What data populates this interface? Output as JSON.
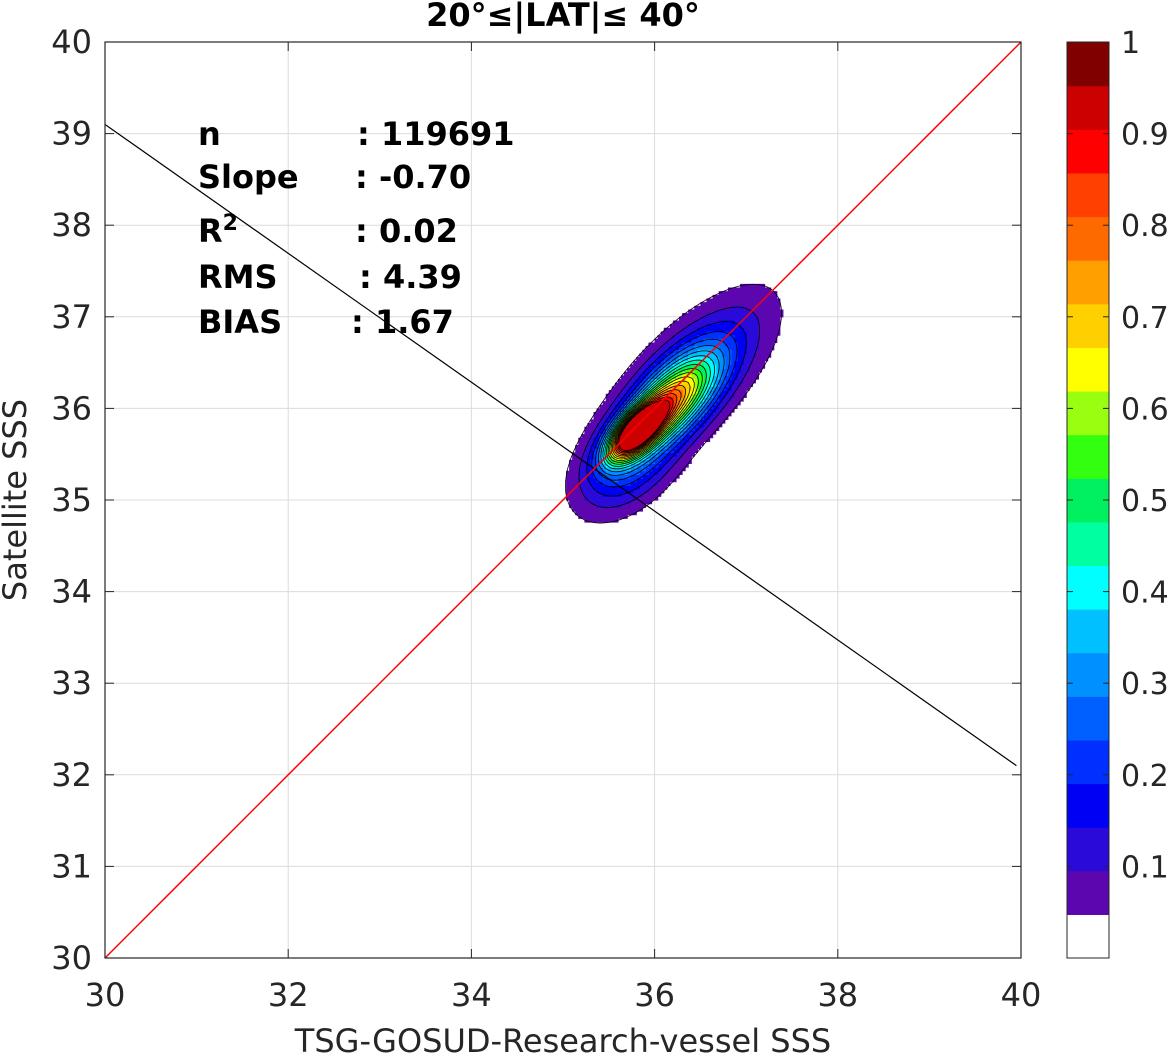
{
  "chart_data": {
    "type": "heatmap",
    "subtype": "filled-contour density scatter",
    "title": "20°≤|LAT|≤ 40°",
    "xlabel": "TSG-GOSUD-Research-vessel SSS",
    "ylabel": "Satellite SSS",
    "xlim": [
      30,
      40
    ],
    "ylim": [
      30,
      40
    ],
    "xticks": [
      30,
      32,
      34,
      36,
      38,
      40
    ],
    "yticks": [
      30,
      31,
      32,
      33,
      34,
      35,
      36,
      37,
      38,
      39,
      40
    ],
    "grid": true,
    "stats": [
      {
        "label": "n",
        "value": ": 119691"
      },
      {
        "label": "Slope",
        "value": ": -0.70"
      },
      {
        "label": "R",
        "sup": "2",
        "value": ": 0.02"
      },
      {
        "label": "RMS",
        "value": ": 4.39"
      },
      {
        "label": "BIAS",
        "value": ": 1.67"
      }
    ],
    "one_to_one_line": {
      "color": "#ff0000",
      "x": [
        30,
        40
      ],
      "y": [
        30,
        40
      ]
    },
    "regression_line": {
      "color": "#000000",
      "x": [
        30,
        39.95
      ],
      "y": [
        39.1,
        32.1
      ]
    },
    "density_peaks": [
      {
        "x": 35.8,
        "y": 35.75,
        "value": 0.95
      },
      {
        "x": 36.3,
        "y": 36.15,
        "value": 0.5
      }
    ],
    "colorbar": {
      "location": "right",
      "ticks": [
        1,
        0.9,
        0.8,
        0.7,
        0.6,
        0.5,
        0.4,
        0.3,
        0.2,
        0.1
      ],
      "tick_labels": [
        "1",
        "0.9",
        "0.8",
        "0.7",
        "0.6",
        "0.5",
        "0.4",
        "0.3",
        "0.2",
        "0.1"
      ],
      "levels": [
        0,
        0.05,
        0.1,
        0.15,
        0.2,
        0.25,
        0.3,
        0.35,
        0.4,
        0.45,
        0.5,
        0.55,
        0.6,
        0.65,
        0.7,
        0.75,
        0.8,
        0.85,
        0.9,
        0.95,
        1.0
      ],
      "colors": [
        "#ffffff",
        "#5c06b0",
        "#2a0ad8",
        "#0000f4",
        "#0030ff",
        "#0060ff",
        "#0090ff",
        "#00c0ff",
        "#00ffff",
        "#00ffa0",
        "#00f060",
        "#33ff11",
        "#99ff11",
        "#ffff00",
        "#ffd000",
        "#ffa000",
        "#ff6a00",
        "#ff4000",
        "#ff0000",
        "#cc0000",
        "#800000"
      ]
    }
  }
}
